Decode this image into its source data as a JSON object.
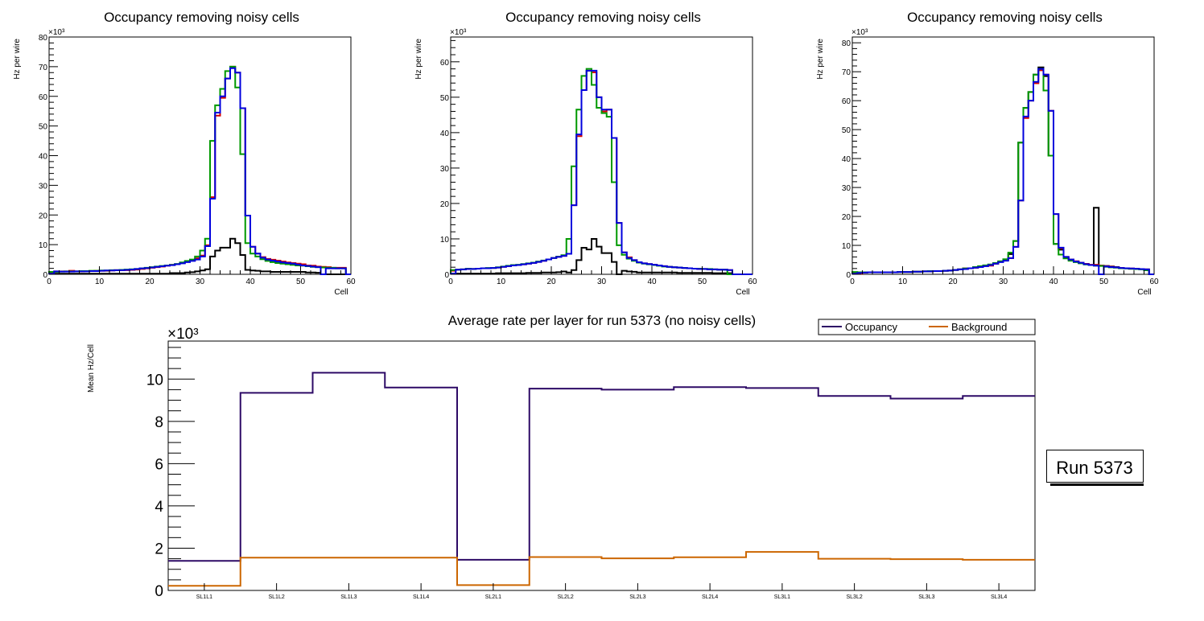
{
  "chart_data": [
    {
      "type": "histogram-step",
      "title": "Occupancy removing noisy cells",
      "xlabel": "Cell",
      "ylabel": "Hz per wire",
      "y_multiplier": "×10³",
      "xlim": [
        0,
        60
      ],
      "ylim": [
        0,
        80
      ],
      "x_ticks": [
        "0",
        "10",
        "20",
        "30",
        "40",
        "50",
        "60"
      ],
      "y_ticks": [
        "0",
        "10",
        "20",
        "30",
        "40",
        "50",
        "60",
        "70",
        "80"
      ],
      "series": [
        {
          "name": "black",
          "color": "#000000",
          "values": [
            0.2,
            0.2,
            0.2,
            0.2,
            0.2,
            0.2,
            0.2,
            0.2,
            0.2,
            0.2,
            0.2,
            0.2,
            0.2,
            0.2,
            0.2,
            0.2,
            0.2,
            0.2,
            0.2,
            0.2,
            0.2,
            0.2,
            0.2,
            0.2,
            0.4,
            0.4,
            0.4,
            0.6,
            0.7,
            1.0,
            1.3,
            1.7,
            6,
            8,
            9,
            9,
            12,
            10.5,
            6.5,
            1.5,
            1.3,
            1.2,
            1.0,
            1.0,
            0.8,
            0.8,
            0.8,
            0.8,
            0.8,
            0.8,
            0.8,
            0.6,
            0.6,
            0.5,
            0,
            0,
            0,
            0,
            0,
            0
          ]
        },
        {
          "name": "red",
          "color": "#d40000",
          "values": [
            0.5,
            1.0,
            1.0,
            1.0,
            1.2,
            1.0,
            1.0,
            1.1,
            1.1,
            1.2,
            1.2,
            1.2,
            1.3,
            1.4,
            1.4,
            1.4,
            1.5,
            1.6,
            1.8,
            2.0,
            2.2,
            2.4,
            2.6,
            2.9,
            3.2,
            3.4,
            3.8,
            4.2,
            4.6,
            5.4,
            6.3,
            9.8,
            26,
            53.5,
            59.5,
            66,
            70,
            68,
            56,
            19.8,
            9.3,
            7,
            5.8,
            5.2,
            4.9,
            4.6,
            4.3,
            4.0,
            3.8,
            3.6,
            3.4,
            3.0,
            2.9,
            2.6,
            2.5,
            2.4,
            2.2,
            2.2,
            2.2,
            0
          ]
        },
        {
          "name": "green",
          "color": "#009900",
          "values": [
            0.8,
            0.8,
            0.9,
            1.0,
            1.0,
            1.0,
            1.1,
            1.1,
            1.2,
            1.2,
            1.3,
            1.3,
            1.4,
            1.4,
            1.5,
            1.6,
            1.7,
            1.8,
            2.0,
            2.2,
            2.4,
            2.6,
            2.8,
            3.0,
            3.2,
            3.5,
            4.0,
            4.5,
            5.0,
            6.0,
            8.0,
            12,
            45,
            57,
            62.5,
            68.5,
            70,
            63,
            40.5,
            10.5,
            7,
            6,
            5.1,
            4.5,
            4.1,
            3.8,
            3.6,
            3.4,
            3.2,
            3.0,
            2.9,
            2.7,
            2.5,
            2.4,
            2.3,
            2.2,
            2.2,
            2.0,
            2.0,
            0
          ]
        },
        {
          "name": "blue",
          "color": "#0000dd",
          "values": [
            0.2,
            1.0,
            0.9,
            0.9,
            0.9,
            1.0,
            1.0,
            1.0,
            1.1,
            1.1,
            1.2,
            1.3,
            1.3,
            1.4,
            1.4,
            1.5,
            1.6,
            1.8,
            2.0,
            2.1,
            2.3,
            2.5,
            2.7,
            2.9,
            3.1,
            3.4,
            3.7,
            4.1,
            4.5,
            5.0,
            6.0,
            9.5,
            25.5,
            54.5,
            60,
            66,
            69.5,
            68,
            56,
            19.8,
            9.3,
            7,
            5.6,
            5.0,
            4.6,
            4.3,
            4.0,
            3.8,
            3.6,
            3.3,
            3.0,
            2.8,
            2.6,
            2.4,
            0,
            2.0,
            2.0,
            2.0,
            2.0,
            0
          ]
        }
      ]
    },
    {
      "type": "histogram-step",
      "title": "Occupancy removing noisy cells",
      "xlabel": "Cell",
      "ylabel": "Hz per wire",
      "y_multiplier": "×10³",
      "xlim": [
        0,
        60
      ],
      "ylim": [
        0,
        67
      ],
      "x_ticks": [
        "0",
        "10",
        "20",
        "30",
        "40",
        "50",
        "60"
      ],
      "y_ticks": [
        "0",
        "10",
        "20",
        "30",
        "40",
        "50",
        "60"
      ],
      "series": [
        {
          "name": "black",
          "color": "#000000",
          "values": [
            0.2,
            0.2,
            0.2,
            0.2,
            0.2,
            0.2,
            0.2,
            0.2,
            0.2,
            0.3,
            0.3,
            0.3,
            0.3,
            0.3,
            0.3,
            0.4,
            0.4,
            0.4,
            0.5,
            0.5,
            0.5,
            0.6,
            0.8,
            0.5,
            1.2,
            4,
            7.5,
            7,
            10,
            7.8,
            6,
            6,
            3.5,
            0,
            1,
            0.8,
            0.7,
            0.5,
            0.5,
            0.5,
            0.5,
            0.5,
            0.5,
            0.5,
            0.5,
            0.4,
            0.4,
            0.4,
            0.4,
            0.4,
            0.4,
            0.4,
            0.3,
            0.3,
            0.3,
            0.3,
            0,
            0,
            0,
            0
          ]
        },
        {
          "name": "red",
          "color": "#d40000",
          "values": [
            1.0,
            1.3,
            1.4,
            1.5,
            1.5,
            1.6,
            1.7,
            1.7,
            1.8,
            1.9,
            2.1,
            2.3,
            2.5,
            2.6,
            2.8,
            3.0,
            3.2,
            3.5,
            3.8,
            4.2,
            4.6,
            4.9,
            5.2,
            5.8,
            19.5,
            39,
            52,
            57.5,
            57,
            50,
            46,
            46.5,
            38.5,
            14.5,
            6.2,
            4.8,
            4,
            3.4,
            3.1,
            2.9,
            2.7,
            2.5,
            2.3,
            2.1,
            2.0,
            1.9,
            1.8,
            1.7,
            1.6,
            1.5,
            1.5,
            1.4,
            1.4,
            1.3,
            1.3,
            1.2,
            0,
            0,
            0,
            0
          ]
        },
        {
          "name": "green",
          "color": "#009900",
          "values": [
            1.2,
            1.3,
            1.4,
            1.6,
            1.5,
            1.6,
            1.7,
            1.8,
            1.8,
            2.0,
            2.2,
            2.4,
            2.6,
            2.7,
            2.9,
            3.1,
            3.3,
            3.6,
            3.9,
            4.2,
            4.6,
            5.0,
            5.4,
            10,
            30.5,
            46.5,
            56,
            58,
            53.5,
            47,
            45.5,
            44.5,
            26,
            8.2,
            5.5,
            4.4,
            3.8,
            3.3,
            3.0,
            2.8,
            2.6,
            2.4,
            2.2,
            2.1,
            2.0,
            1.9,
            1.8,
            1.7,
            1.6,
            1.6,
            1.5,
            1.5,
            1.4,
            1.3,
            1.3,
            0,
            0,
            0,
            0,
            0
          ]
        },
        {
          "name": "blue",
          "color": "#0000dd",
          "values": [
            0.2,
            1.3,
            1.4,
            1.5,
            1.5,
            1.6,
            1.7,
            1.7,
            1.8,
            1.9,
            2.1,
            2.3,
            2.5,
            2.6,
            2.8,
            3.0,
            3.2,
            3.5,
            3.8,
            4.2,
            4.6,
            4.9,
            5.2,
            5.8,
            19.5,
            39.5,
            52,
            57.5,
            57.5,
            50,
            46.5,
            46.5,
            38.5,
            14.5,
            6.2,
            4.6,
            4,
            3.4,
            3.1,
            2.9,
            2.7,
            2.5,
            2.3,
            2.1,
            2.0,
            1.9,
            1.8,
            1.7,
            1.6,
            1.5,
            1.5,
            1.4,
            1.4,
            1.3,
            1.3,
            1.2,
            0,
            0,
            0,
            0
          ]
        }
      ]
    },
    {
      "type": "histogram-step",
      "title": "Occupancy removing noisy cells",
      "xlabel": "Cell",
      "ylabel": "Hz per wire",
      "y_multiplier": "×10³",
      "xlim": [
        0,
        60
      ],
      "ylim": [
        0,
        82
      ],
      "x_ticks": [
        "0",
        "10",
        "20",
        "30",
        "40",
        "50",
        "60"
      ],
      "y_ticks": [
        "0",
        "10",
        "20",
        "30",
        "40",
        "50",
        "60",
        "70",
        "80"
      ],
      "series": [
        {
          "name": "black",
          "color": "#000000",
          "values": [
            0.3,
            0.5,
            0.6,
            0.7,
            0.7,
            0.7,
            0.7,
            0.7,
            0.7,
            0.8,
            0.8,
            0.8,
            0.9,
            0.9,
            1.0,
            1.0,
            1.1,
            1.1,
            1.2,
            1.3,
            1.5,
            1.7,
            2.0,
            2.1,
            2.3,
            2.6,
            2.9,
            3.2,
            3.7,
            4.3,
            5.0,
            7.0,
            11.5,
            45.5,
            57.5,
            63,
            69,
            71.5,
            68.5,
            41,
            10.5,
            8.5,
            5.8,
            4.9,
            4.4,
            3.9,
            3.5,
            3.2,
            23,
            3,
            2.9,
            2.7,
            2.5,
            2.2,
            2.1,
            1.9,
            1.9,
            1.8,
            1.7,
            0
          ]
        },
        {
          "name": "red",
          "color": "#d40000",
          "values": [
            0.3,
            0.2,
            0.6,
            0.7,
            0.7,
            0.7,
            0.7,
            0.7,
            0.7,
            0.8,
            0.8,
            0.8,
            0.9,
            0.9,
            1.0,
            1.0,
            1.1,
            1.1,
            1.2,
            1.3,
            1.5,
            1.7,
            2.0,
            2.1,
            2.3,
            2.6,
            2.9,
            3.0,
            3.7,
            4.3,
            5.0,
            5.6,
            9.5,
            25.5,
            54,
            60,
            66,
            70.5,
            69,
            56.5,
            20.8,
            9.0,
            6.0,
            5.1,
            4.5,
            4.0,
            3.6,
            3.3,
            3.3,
            3.0,
            2.8,
            2.6,
            2.4,
            2.2,
            2.1,
            2.0,
            1.9,
            1.8,
            1.7,
            0
          ]
        },
        {
          "name": "green",
          "color": "#009900",
          "values": [
            0.8,
            0.7,
            0.7,
            0.7,
            0.7,
            0.7,
            0.7,
            0.7,
            0.7,
            0.8,
            0.8,
            0.8,
            0.9,
            0.9,
            1.0,
            1.1,
            1.1,
            1.1,
            1.2,
            1.3,
            1.5,
            1.7,
            2.0,
            2.1,
            2.5,
            2.8,
            3.1,
            3.4,
            3.9,
            4.5,
            5.2,
            7.5,
            11.5,
            45.5,
            57.5,
            63,
            69,
            71,
            63.5,
            41,
            10.5,
            6.8,
            5.5,
            4.7,
            4.2,
            3.8,
            3.4,
            3.2,
            3.0,
            2.9,
            2.6,
            2.4,
            2.3,
            2.1,
            2.0,
            1.9,
            1.8,
            1.7,
            1.4,
            0
          ]
        },
        {
          "name": "blue",
          "color": "#0000dd",
          "values": [
            0.2,
            0.5,
            0.6,
            0.7,
            0.7,
            0.7,
            0.7,
            0.7,
            0.7,
            0.8,
            0.8,
            0.8,
            0.9,
            0.9,
            1.0,
            1.0,
            1.1,
            1.1,
            1.2,
            1.3,
            1.5,
            1.7,
            1.8,
            2.1,
            2.3,
            2.5,
            2.8,
            3.2,
            3.7,
            4.2,
            4.7,
            5.6,
            9.5,
            25.5,
            54.5,
            60,
            66.5,
            71,
            69,
            56.5,
            20.8,
            9.2,
            6.0,
            5.1,
            4.4,
            4.0,
            3.5,
            3.2,
            3.0,
            0,
            2.7,
            2.5,
            2.4,
            2.2,
            2.1,
            2.0,
            1.9,
            1.8,
            1.7,
            0
          ]
        }
      ]
    },
    {
      "type": "histogram-step",
      "title": "Average rate per layer for run 5373 (no noisy cells)",
      "xlabel": "",
      "ylabel": "Mean Hz/Cell",
      "y_multiplier": "×10³",
      "ylim": [
        0,
        11.8
      ],
      "y_ticks": [
        "0",
        "2",
        "4",
        "6",
        "8",
        "10"
      ],
      "categories": [
        "SL1L1",
        "SL1L2",
        "SL1L3",
        "SL1L4",
        "SL2L1",
        "SL2L2",
        "SL2L3",
        "SL2L4",
        "SL3L1",
        "SL3L2",
        "SL3L3",
        "SL3L4"
      ],
      "series": [
        {
          "name": "Occupancy",
          "color": "#2d0a66",
          "values": [
            1.4,
            9.35,
            10.3,
            9.6,
            1.45,
            9.55,
            9.5,
            9.62,
            9.58,
            9.2,
            9.08,
            9.2
          ]
        },
        {
          "name": "Background",
          "color": "#cc6600",
          "values": [
            0.22,
            1.55,
            1.55,
            1.55,
            0.25,
            1.58,
            1.52,
            1.57,
            1.82,
            1.5,
            1.48,
            1.45
          ]
        }
      ],
      "legend": {
        "placement": "top-right",
        "entries": [
          "Occupancy",
          "Background"
        ]
      },
      "annotation": "Run 5373"
    }
  ]
}
